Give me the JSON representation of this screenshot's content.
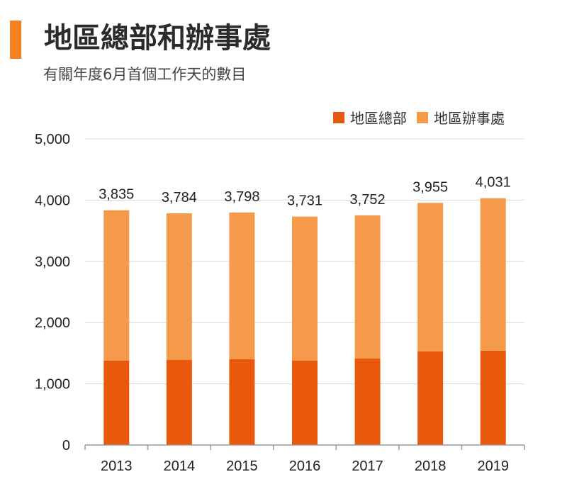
{
  "header": {
    "title": "地區總部和辦事處",
    "subtitle": "有關年度6月首個工作天的數目",
    "accent_color": "#f58220"
  },
  "colors": {
    "regional_hq": "#e8590c",
    "regional_office": "#f5994a",
    "axis": "#999999",
    "grid": "#d9d9d9"
  },
  "chart_data": {
    "type": "bar",
    "stacked": true,
    "categories": [
      "2013",
      "2014",
      "2015",
      "2016",
      "2017",
      "2018",
      "2019"
    ],
    "series": [
      {
        "name": "地區總部",
        "values": [
          1379,
          1389,
          1401,
          1379,
          1413,
          1530,
          1541
        ]
      },
      {
        "name": "地區辦事處",
        "values": [
          2456,
          2395,
          2397,
          2352,
          2339,
          2425,
          2490
        ]
      }
    ],
    "totals": [
      3835,
      3784,
      3798,
      3731,
      3752,
      3955,
      4031
    ],
    "total_labels": [
      "3,835",
      "3,784",
      "3,798",
      "3,731",
      "3,752",
      "3,955",
      "4,031"
    ],
    "yticks": [
      0,
      1000,
      2000,
      3000,
      4000,
      5000
    ],
    "ytick_labels": [
      "0",
      "1,000",
      "2,000",
      "3,000",
      "4,000",
      "5,000"
    ],
    "ylim": [
      0,
      5000
    ],
    "grid": true,
    "legend_position": "top-right",
    "title": "地區總部和辦事處",
    "subtitle": "有關年度6月首個工作天的數目"
  }
}
